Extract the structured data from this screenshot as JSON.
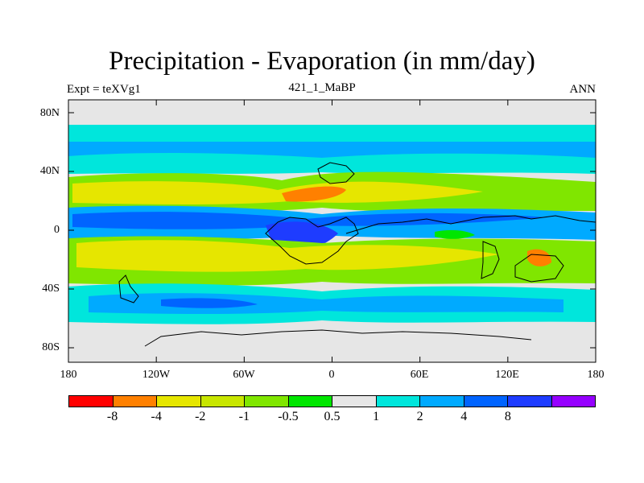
{
  "header": {
    "title": "Precipitation - Evaporation (in mm/day)",
    "left": "Expt = teXVg1",
    "center": "421_1_MaBP",
    "right": "ANN"
  },
  "axes": {
    "y_labels": [
      "80N",
      "40N",
      "0",
      "40S",
      "80S"
    ],
    "x_labels": [
      "180",
      "120W",
      "60W",
      "0",
      "60E",
      "120E",
      "180"
    ]
  },
  "colorbar": {
    "colors": [
      "#ff0000",
      "#ff8000",
      "#e6e600",
      "#c8e600",
      "#80e600",
      "#00e600",
      "#e6e6e6",
      "#00e6dc",
      "#00aaff",
      "#0064ff",
      "#1e3cff",
      "#9600ff"
    ],
    "labels": [
      "-8",
      "-4",
      "-2",
      "-1",
      "-0.5",
      "0.5",
      "1",
      "2",
      "4",
      "8"
    ]
  },
  "legend_colors": {
    "ocean_bg": "#e6e6e6",
    "coast": "#000000"
  }
}
